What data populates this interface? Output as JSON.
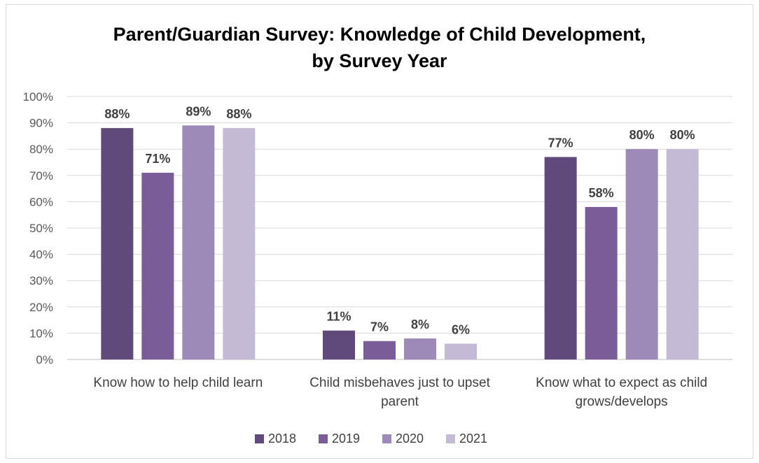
{
  "chart_data": {
    "type": "bar",
    "title_lines": [
      "Parent/Guardian Survey:  Knowledge of Child Development,",
      "by Survey Year"
    ],
    "categories": [
      [
        "Know how to help child learn"
      ],
      [
        "Child misbehaves just to upset",
        "parent"
      ],
      [
        "Know what to expect as child",
        "grows/develops"
      ]
    ],
    "series": [
      {
        "name": "2018",
        "color": "#604a7b",
        "values": [
          88,
          11,
          77
        ],
        "labels": [
          "88%",
          "11%",
          "77%"
        ]
      },
      {
        "name": "2019",
        "color": "#7a5c99",
        "values": [
          71,
          7,
          58
        ],
        "labels": [
          "71%",
          "7%",
          "58%"
        ]
      },
      {
        "name": "2020",
        "color": "#9d8ab8",
        "values": [
          89,
          8,
          80
        ],
        "labels": [
          "89%",
          "8%",
          "80%"
        ]
      },
      {
        "name": "2021",
        "color": "#c4bad6",
        "values": [
          88,
          6,
          80
        ],
        "labels": [
          "88%",
          "6%",
          "80%"
        ]
      }
    ],
    "ylim": [
      0,
      100
    ],
    "yticks": [
      "0%",
      "10%",
      "20%",
      "30%",
      "40%",
      "50%",
      "60%",
      "70%",
      "80%",
      "90%",
      "100%"
    ],
    "grid": true,
    "legend_position": "bottom"
  }
}
